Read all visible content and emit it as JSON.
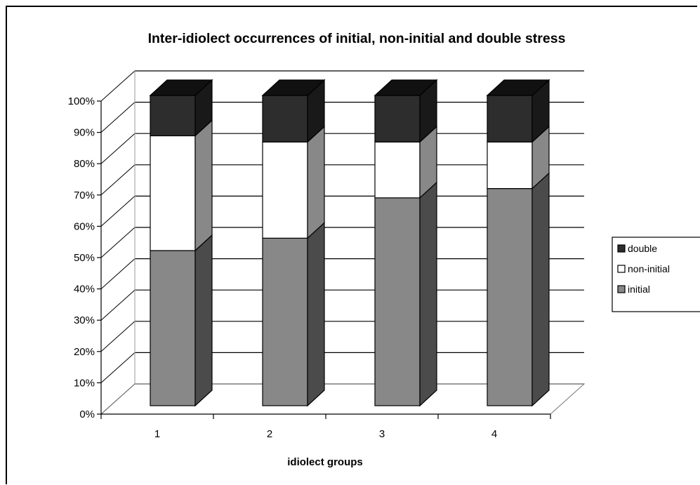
{
  "chart_data": {
    "type": "bar",
    "stacked": true,
    "percent": true,
    "three_d": true,
    "title": "Inter-idiolect occurrences of initial, non-initial and double stress",
    "xlabel": "idiolect groups",
    "ylabel": "",
    "categories": [
      "1",
      "2",
      "3",
      "4"
    ],
    "ylim": [
      0,
      100
    ],
    "yticks": [
      "0%",
      "10%",
      "20%",
      "30%",
      "40%",
      "50%",
      "60%",
      "70%",
      "80%",
      "90%",
      "100%"
    ],
    "series": [
      {
        "name": "initial",
        "values": [
          50,
          54,
          67,
          70
        ],
        "color": "#888888"
      },
      {
        "name": "non-initial",
        "values": [
          37,
          31,
          18,
          15
        ],
        "color": "#ffffff"
      },
      {
        "name": "double",
        "values": [
          13,
          15,
          15,
          15
        ],
        "color": "#2d2d2d"
      }
    ],
    "legend": {
      "position": "right",
      "order": [
        "double",
        "non-initial",
        "initial"
      ]
    },
    "grid": true
  }
}
